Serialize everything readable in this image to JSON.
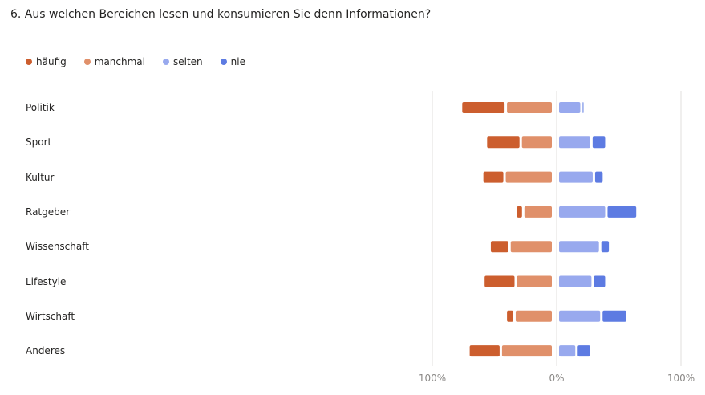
{
  "question": {
    "title": "6. Aus welchen Bereichen lesen und konsumieren Sie denn Informationen?"
  },
  "colors": {
    "haeufig": "#CC5E2E",
    "manchmal": "#E0906A",
    "selten": "#98A9EE",
    "nie": "#5D7BE2",
    "axis": "#E1DFDD",
    "tick": "#8A8886"
  },
  "legend": [
    {
      "label": "häufig",
      "color": "#CC5E2E"
    },
    {
      "label": "manchmal",
      "color": "#E0906A"
    },
    {
      "label": "selten",
      "color": "#98A9EE"
    },
    {
      "label": "nie",
      "color": "#5D7BE2"
    }
  ],
  "chart_data": {
    "type": "bar",
    "subtype": "diverging-stacked",
    "title": "6. Aus welchen Bereichen lesen und konsumieren Sie denn Informationen?",
    "categories": [
      "Politik",
      "Sport",
      "Kultur",
      "Ratgeber",
      "Wissenschaft",
      "Lifestyle",
      "Wirtschaft",
      "Anderes"
    ],
    "series": [
      {
        "name": "häufig",
        "side": "negative",
        "values": [
          36,
          28,
          18,
          6,
          16,
          26,
          7,
          26
        ]
      },
      {
        "name": "manchmal",
        "side": "negative",
        "values": [
          38,
          26,
          39,
          24,
          35,
          30,
          31,
          42
        ]
      },
      {
        "name": "selten",
        "side": "positive",
        "values": [
          19,
          27,
          29,
          39,
          34,
          28,
          35,
          15
        ]
      },
      {
        "name": "nie",
        "side": "positive",
        "values": [
          2,
          12,
          8,
          25,
          8,
          11,
          21,
          12
        ]
      }
    ],
    "xlim": [
      -100,
      100
    ],
    "x_ticks": [
      "100%",
      "0%",
      "100%"
    ],
    "legend_position": "top-left"
  }
}
